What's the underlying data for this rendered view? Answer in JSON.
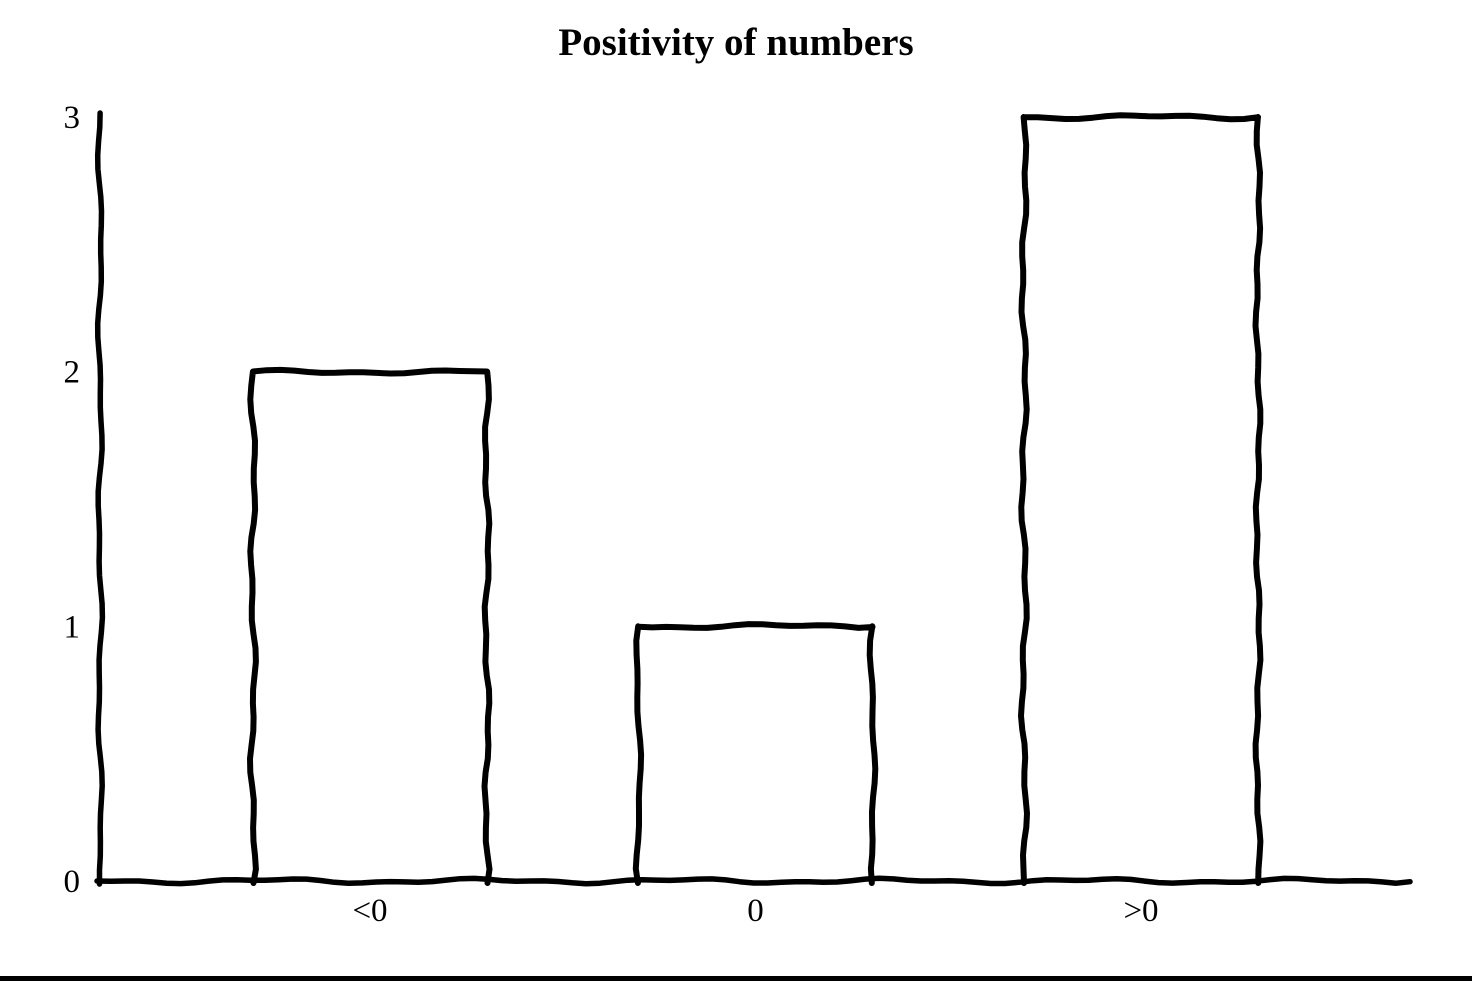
{
  "window": {
    "background": "#ffffff",
    "bottom_border_color": "#000000"
  },
  "chart_data": {
    "type": "bar",
    "title": "Positivity of numbers",
    "categories": [
      "<0",
      "0",
      ">0"
    ],
    "values": [
      2,
      1,
      3
    ],
    "y_ticks": [
      "0",
      "1",
      "2",
      "3"
    ],
    "ylim": [
      0,
      3
    ],
    "xlabel": "",
    "ylabel": "",
    "grid": false,
    "legend": "none",
    "style": "hand-drawn-outline",
    "ink_color": "#000000",
    "bar_fill": "none",
    "background": "#ffffff"
  }
}
